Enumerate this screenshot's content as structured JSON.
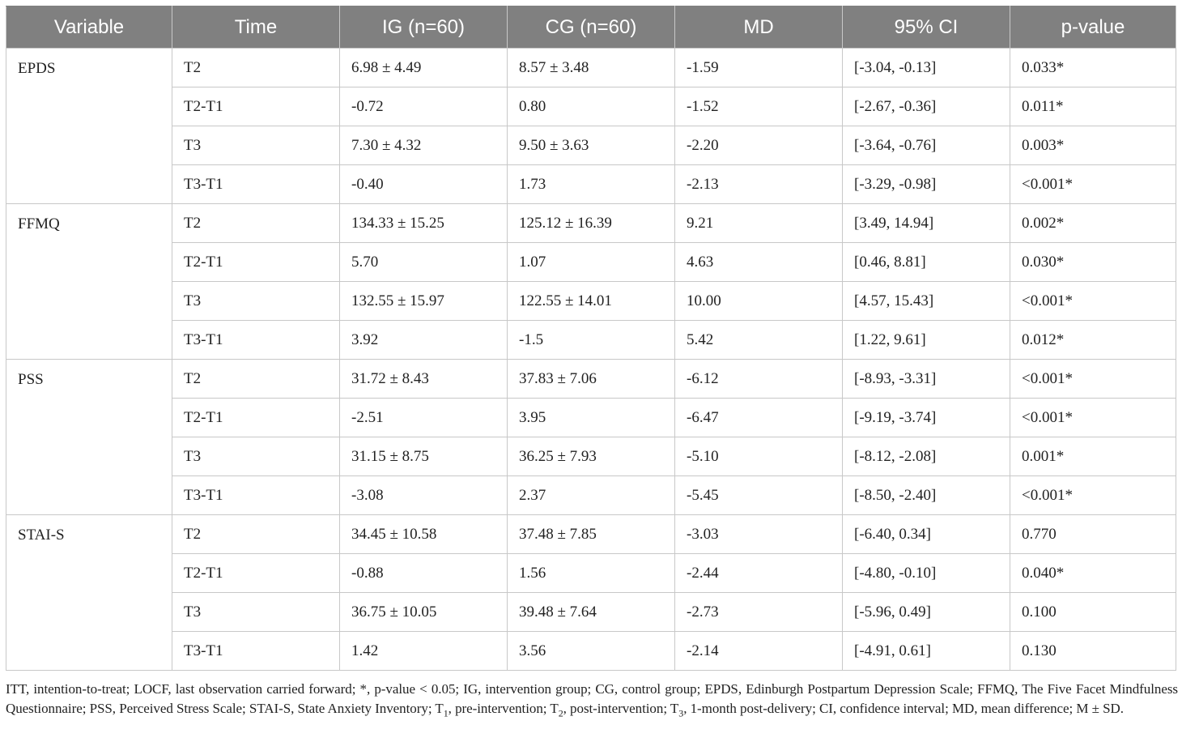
{
  "table": {
    "headers": [
      "Variable",
      "Time",
      "IG (n=60)",
      "CG (n=60)",
      "MD",
      "95% CI",
      "p-value"
    ],
    "groups": [
      {
        "variable": "EPDS",
        "rows": [
          {
            "time": "T2",
            "ig": "6.98 ± 4.49",
            "cg": "8.57 ± 3.48",
            "md": "-1.59",
            "ci": "[-3.04, -0.13]",
            "p": "0.033*"
          },
          {
            "time": "T2-T1",
            "ig": "-0.72",
            "cg": "0.80",
            "md": "-1.52",
            "ci": "[-2.67, -0.36]",
            "p": "0.011*"
          },
          {
            "time": "T3",
            "ig": "7.30 ± 4.32",
            "cg": "9.50 ± 3.63",
            "md": "-2.20",
            "ci": "[-3.64, -0.76]",
            "p": "0.003*"
          },
          {
            "time": "T3-T1",
            "ig": "-0.40",
            "cg": "1.73",
            "md": "-2.13",
            "ci": "[-3.29, -0.98]",
            "p": "<0.001*"
          }
        ]
      },
      {
        "variable": "FFMQ",
        "rows": [
          {
            "time": "T2",
            "ig": "134.33 ± 15.25",
            "cg": "125.12 ± 16.39",
            "md": "9.21",
            "ci": "[3.49, 14.94]",
            "p": "0.002*"
          },
          {
            "time": "T2-T1",
            "ig": "5.70",
            "cg": "1.07",
            "md": "4.63",
            "ci": "[0.46, 8.81]",
            "p": "0.030*"
          },
          {
            "time": "T3",
            "ig": "132.55 ± 15.97",
            "cg": "122.55 ± 14.01",
            "md": "10.00",
            "ci": "[4.57, 15.43]",
            "p": "<0.001*"
          },
          {
            "time": "T3-T1",
            "ig": "3.92",
            "cg": "-1.5",
            "md": "5.42",
            "ci": "[1.22, 9.61]",
            "p": "0.012*"
          }
        ]
      },
      {
        "variable": "PSS",
        "rows": [
          {
            "time": "T2",
            "ig": "31.72 ± 8.43",
            "cg": "37.83 ± 7.06",
            "md": "-6.12",
            "ci": "[-8.93, -3.31]",
            "p": "<0.001*"
          },
          {
            "time": "T2-T1",
            "ig": "-2.51",
            "cg": "3.95",
            "md": "-6.47",
            "ci": "[-9.19, -3.74]",
            "p": "<0.001*"
          },
          {
            "time": "T3",
            "ig": "31.15 ± 8.75",
            "cg": "36.25 ± 7.93",
            "md": "-5.10",
            "ci": "[-8.12, -2.08]",
            "p": "0.001*"
          },
          {
            "time": "T3-T1",
            "ig": "-3.08",
            "cg": "2.37",
            "md": "-5.45",
            "ci": "[-8.50, -2.40]",
            "p": "<0.001*"
          }
        ]
      },
      {
        "variable": "STAI-S",
        "rows": [
          {
            "time": "T2",
            "ig": "34.45 ± 10.58",
            "cg": "37.48 ± 7.85",
            "md": "-3.03",
            "ci": "[-6.40, 0.34]",
            "p": "0.770"
          },
          {
            "time": "T2-T1",
            "ig": "-0.88",
            "cg": "1.56",
            "md": "-2.44",
            "ci": "[-4.80, -0.10]",
            "p": "0.040*"
          },
          {
            "time": "T3",
            "ig": "36.75 ± 10.05",
            "cg": "39.48 ± 7.64",
            "md": "-2.73",
            "ci": "[-5.96, 0.49]",
            "p": "0.100"
          },
          {
            "time": "T3-T1",
            "ig": "1.42",
            "cg": "3.56",
            "md": "-2.14",
            "ci": "[-4.91, 0.61]",
            "p": "0.130"
          }
        ]
      }
    ]
  },
  "footnote": "ITT, intention-to-treat; LOCF, last observation carried forward; *, p-value < 0.05; IG, intervention group; CG, control group; EPDS, Edinburgh Postpartum Depression Scale; FFMQ, The Five Facet Mindfulness Questionnaire; PSS, Perceived Stress Scale; STAI-S, State Anxiety Inventory; T1, pre-intervention; T2, post-intervention; T3, 1-month post-delivery; CI, confidence interval; MD, mean difference; M ± SD.",
  "colors": {
    "header_bg": "#808080",
    "header_text": "#ffffff",
    "border": "#c8c8c8",
    "body_text": "#222222"
  }
}
